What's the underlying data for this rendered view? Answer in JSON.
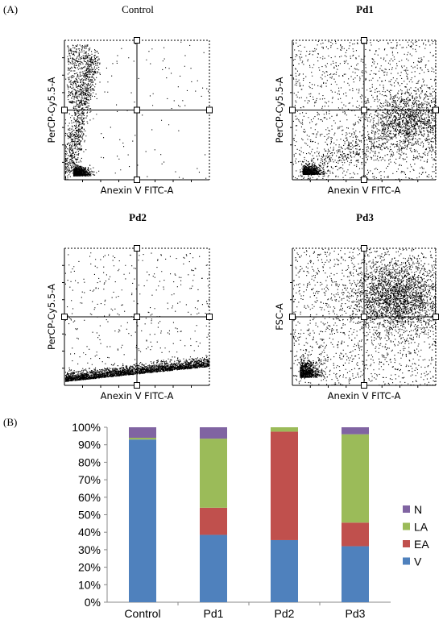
{
  "labels": {
    "panel_a": "(A)",
    "panel_b": "(B)"
  },
  "flow_plots": [
    {
      "title": "Control",
      "bold": false,
      "xlabel": "Anexin V FITC-A",
      "ylabel": "PerCP-Cy5.5-A",
      "pattern": "control"
    },
    {
      "title": "Pd1",
      "bold": true,
      "xlabel": "Anexin V FITC-A",
      "ylabel": "PerCP-Cy5.5-A",
      "pattern": "pd1"
    },
    {
      "title": "Pd2",
      "bold": true,
      "xlabel": "Anexin V FITC-A",
      "ylabel": "PerCP-Cy5.5-A",
      "pattern": "pd2"
    },
    {
      "title": "Pd3",
      "bold": true,
      "xlabel": "Anexin V FITC-A",
      "ylabel": "FSC-A",
      "pattern": "pd3"
    }
  ],
  "chart_data": {
    "type": "bar",
    "stacked": true,
    "categories": [
      "Control",
      "Pd1",
      "Pd2",
      "Pd3"
    ],
    "series": [
      {
        "name": "V",
        "color": "#4f81bd",
        "values": [
          93,
          38.5,
          35.5,
          32
        ]
      },
      {
        "name": "EA",
        "color": "#c0504d",
        "values": [
          0,
          15.5,
          62,
          13.5
        ]
      },
      {
        "name": "LA",
        "color": "#9bbb59",
        "values": [
          1,
          39.5,
          2.5,
          50.5
        ]
      },
      {
        "name": "N",
        "color": "#8064a2",
        "values": [
          6,
          6.5,
          0,
          4
        ]
      }
    ],
    "yticks": [
      "0%",
      "10%",
      "20%",
      "30%",
      "40%",
      "50%",
      "60%",
      "70%",
      "80%",
      "90%",
      "100%"
    ],
    "ylim": [
      0,
      100
    ],
    "legend_order": [
      "N",
      "LA",
      "EA",
      "V"
    ],
    "legend_position": "right"
  }
}
